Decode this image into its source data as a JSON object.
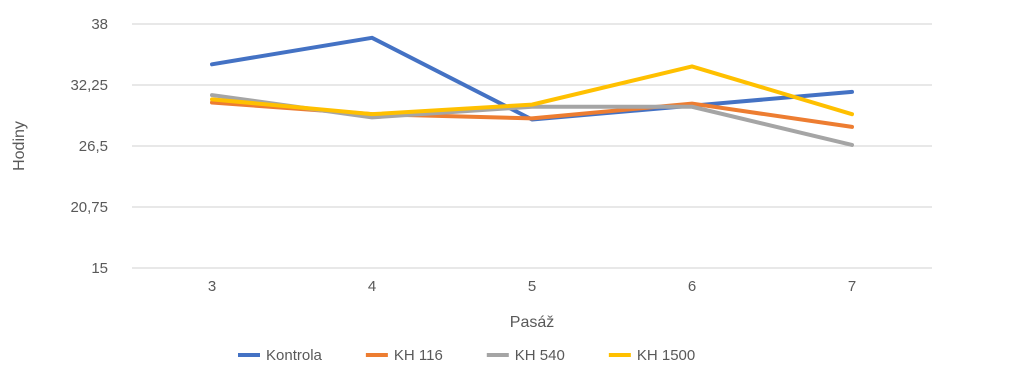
{
  "chart_data": {
    "type": "line",
    "title": "",
    "xlabel": "Pasáž",
    "ylabel": "Hodiny",
    "categories": [
      "3",
      "4",
      "5",
      "6",
      "7"
    ],
    "y_ticks": [
      "15",
      "20,75",
      "26,5",
      "32,25",
      "38"
    ],
    "ylim": [
      15,
      38
    ],
    "grid": true,
    "legend_position": "bottom",
    "series": [
      {
        "name": "Kontrola",
        "color": "#4472C4",
        "values": [
          34.2,
          36.7,
          29.0,
          30.3,
          31.6
        ]
      },
      {
        "name": "KH 116",
        "color": "#ED7D31",
        "values": [
          30.6,
          29.5,
          29.1,
          30.5,
          28.3
        ]
      },
      {
        "name": "KH 540",
        "color": "#A5A5A5",
        "values": [
          31.3,
          29.2,
          30.2,
          30.2,
          26.6
        ]
      },
      {
        "name": "KH 1500",
        "color": "#FFC000",
        "values": [
          30.9,
          29.5,
          30.4,
          34.0,
          29.5
        ]
      }
    ]
  }
}
